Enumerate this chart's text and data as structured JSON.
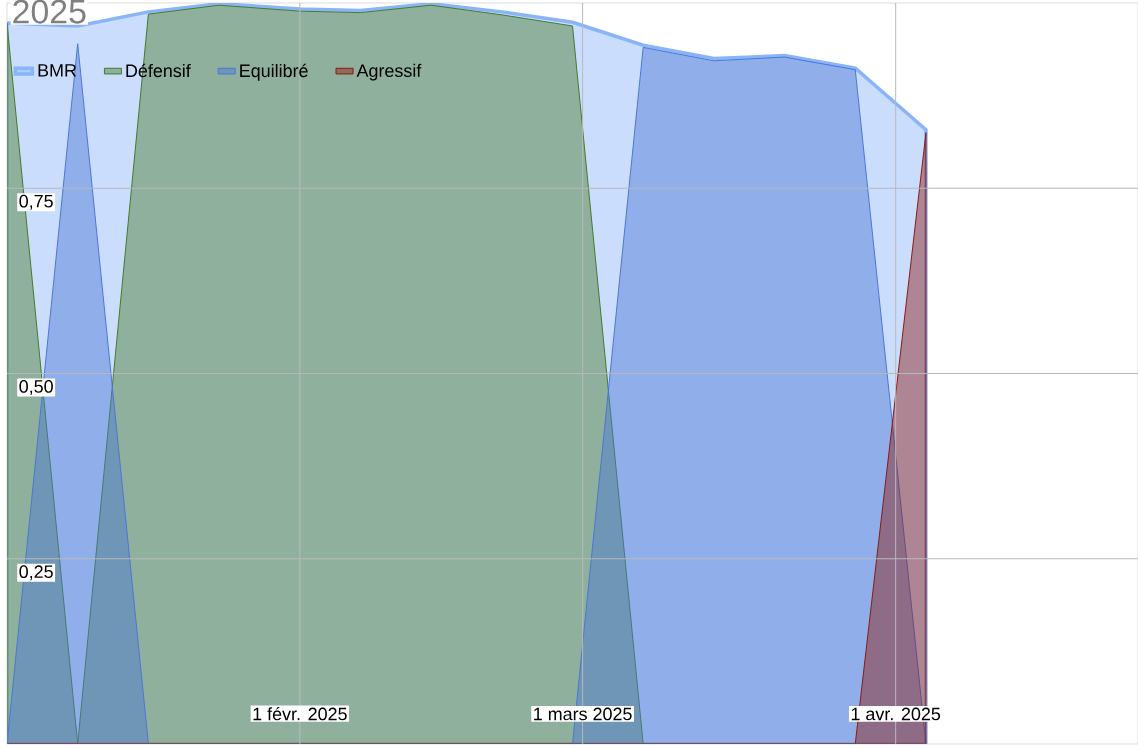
{
  "chart_data": {
    "type": "area",
    "title": "2025",
    "x": [
      "2025-01-03",
      "2025-01-10",
      "2025-01-17",
      "2025-01-24",
      "2025-02-01",
      "2025-02-07",
      "2025-02-14",
      "2025-02-21",
      "2025-02-28",
      "2025-03-07",
      "2025-03-14",
      "2025-03-21",
      "2025-03-28",
      "2025-04-04"
    ],
    "series": [
      {
        "name": "BMR",
        "color": "#8ab4f8",
        "values": [
          0.973,
          0.969,
          0.988,
          0.999,
          0.992,
          0.99,
          0.999,
          0.988,
          0.974,
          0.943,
          0.925,
          0.929,
          0.912,
          0.829
        ]
      },
      {
        "name": "Défensif",
        "color": "#457b2a",
        "values": [
          0.973,
          0,
          0.985,
          0.997,
          0.989,
          0.987,
          0.997,
          0.984,
          0.969,
          0,
          0,
          0,
          0,
          0
        ]
      },
      {
        "name": "Equilibré",
        "color": "#4a78d4",
        "values": [
          0,
          0.945,
          0,
          0,
          0,
          0,
          0,
          0,
          0,
          0.94,
          0.922,
          0.927,
          0.91,
          0
        ]
      },
      {
        "name": "Agressif",
        "color": "#8c1a11",
        "values": [
          0,
          0,
          0,
          0,
          0,
          0,
          0,
          0,
          0,
          0,
          0,
          0,
          0,
          0.825
        ]
      }
    ],
    "xlim": [
      "2025-01-03",
      "2025-04-25"
    ],
    "xticks": [
      {
        "value": "2025-02-01",
        "label": "1 févr. 2025"
      },
      {
        "value": "2025-03-01",
        "label": "1 mars 2025"
      },
      {
        "value": "2025-04-01",
        "label": "1 avr. 2025"
      }
    ],
    "ylim": [
      0,
      1
    ],
    "yticks": [
      {
        "value": 0.25,
        "label": "0,25"
      },
      {
        "value": 0.5,
        "label": "0,50"
      },
      {
        "value": 0.75,
        "label": "0,75"
      }
    ],
    "grid": true,
    "legend": "top left"
  }
}
